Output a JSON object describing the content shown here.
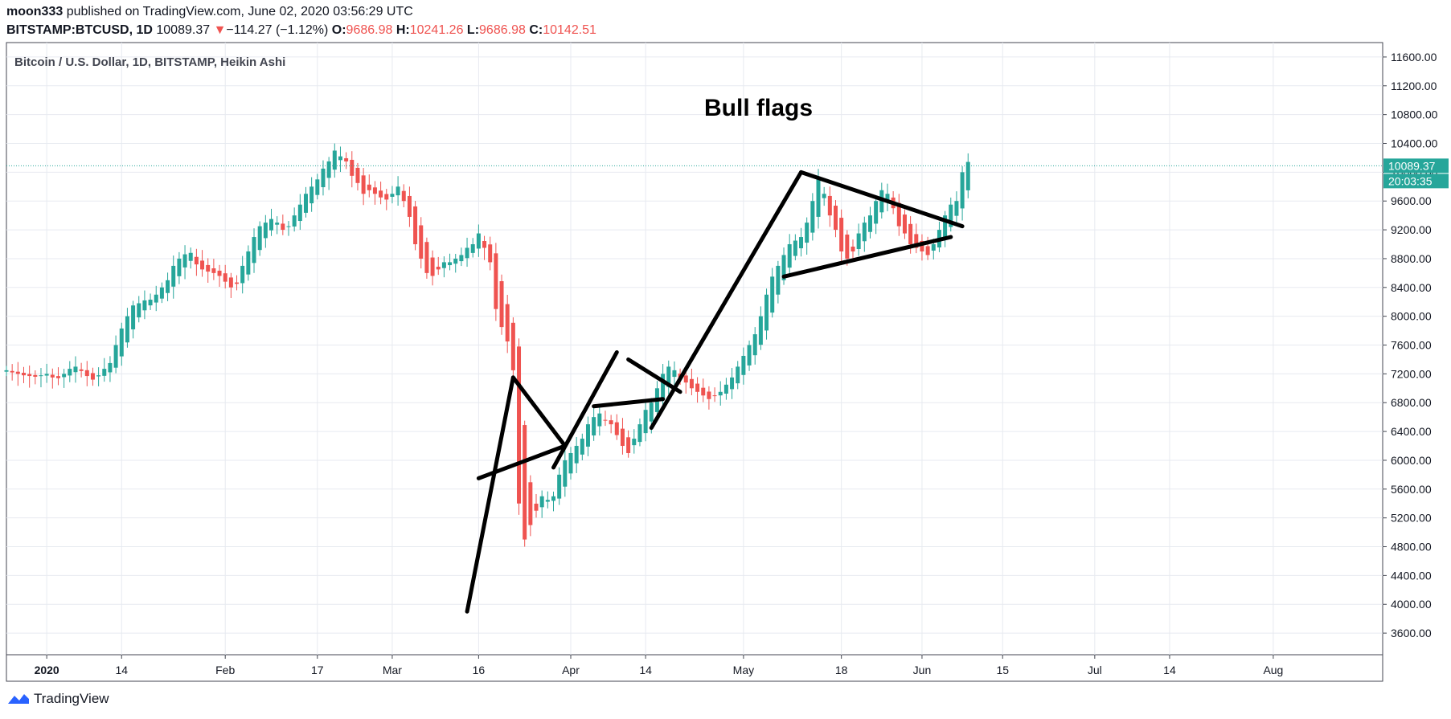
{
  "header": {
    "author": "moon333",
    "published_text": "published on TradingView.com, June 02, 2020 03:56:29 UTC",
    "symbol": "BITSTAMP:BTCUSD, 1D",
    "last": "10089.37",
    "change_arrow": "▼",
    "change": "−114.27 (−1.12%)",
    "o_label": "O:",
    "o": "9686.98",
    "h_label": "H:",
    "h": "10241.26",
    "l_label": "L:",
    "l": "9686.98",
    "c_label": "C:",
    "c": "10142.51"
  },
  "footer": {
    "brand": "TradingView",
    "logo_icon": "tradingview-logo-icon"
  },
  "colors": {
    "up": "#26a69a",
    "down": "#ef5350",
    "grid": "#e7eaf0",
    "price_line": "#26a69a",
    "annotation": "#000000"
  },
  "chart_data": {
    "type": "candlestick",
    "title": "Bitcoin / U.S. Dollar, 1D, BITSTAMP, Heikin Ashi",
    "ylim": [
      3300,
      11800
    ],
    "y_ticks": [
      3600,
      4000,
      4400,
      4800,
      5200,
      5600,
      6000,
      6400,
      6800,
      7200,
      7600,
      8000,
      8400,
      8800,
      9200,
      9600,
      10000,
      10400,
      10800,
      11200,
      11600
    ],
    "y_tick_labels": [
      "3600.00",
      "4000.00",
      "4400.00",
      "4800.00",
      "5200.00",
      "5600.00",
      "6000.00",
      "6400.00",
      "6800.00",
      "7200.00",
      "7600.00",
      "8000.00",
      "8400.00",
      "8800.00",
      "9200.00",
      "9600.00",
      "10000.00",
      "10400.00",
      "10800.00",
      "11200.00",
      "11600.00"
    ],
    "x_start": "2019-12-25",
    "x_end": "2020-08-20",
    "x_ticks": [
      {
        "date": "2020-01-01",
        "label": "2020",
        "bold": true
      },
      {
        "date": "2020-01-14",
        "label": "14"
      },
      {
        "date": "2020-02-01",
        "label": "Feb"
      },
      {
        "date": "2020-02-17",
        "label": "17"
      },
      {
        "date": "2020-03-01",
        "label": "Mar"
      },
      {
        "date": "2020-03-16",
        "label": "16"
      },
      {
        "date": "2020-04-01",
        "label": "Apr"
      },
      {
        "date": "2020-04-14",
        "label": "14"
      },
      {
        "date": "2020-05-01",
        "label": "May"
      },
      {
        "date": "2020-05-18",
        "label": "18"
      },
      {
        "date": "2020-06-01",
        "label": "Jun"
      },
      {
        "date": "2020-06-15",
        "label": "15"
      },
      {
        "date": "2020-07-01",
        "label": "Jul"
      },
      {
        "date": "2020-07-14",
        "label": "14"
      },
      {
        "date": "2020-08-01",
        "label": "Aug"
      }
    ],
    "first_candle_date": "2019-12-25",
    "closes": [
      7250,
      7220,
      7200,
      7180,
      7170,
      7160,
      7180,
      7200,
      7150,
      7140,
      7200,
      7270,
      7300,
      7240,
      7170,
      7120,
      7180,
      7270,
      7350,
      7600,
      7830,
      8000,
      8150,
      8180,
      8220,
      8230,
      8300,
      8400,
      8500,
      8700,
      8800,
      8860,
      8880,
      8720,
      8650,
      8620,
      8600,
      8560,
      8480,
      8400,
      8450,
      8700,
      8900,
      9100,
      9250,
      9300,
      9350,
      9300,
      9200,
      9250,
      9400,
      9550,
      9700,
      9800,
      9900,
      10050,
      10150,
      10300,
      10220,
      10150,
      9950,
      9850,
      9700,
      9750,
      9700,
      9650,
      9620,
      9700,
      9800,
      9600,
      9380,
      9000,
      8800,
      8600,
      8560,
      8650,
      8750,
      8750,
      8800,
      8850,
      8950,
      9000,
      9150,
      8950,
      8750,
      8100,
      7850,
      7650,
      7250,
      5400,
      4900,
      5100,
      5300,
      5500,
      5450,
      5500,
      5800,
      6000,
      6100,
      6200,
      6300,
      6500,
      6600,
      6650,
      6550,
      6500,
      6350,
      6200,
      6100,
      6300,
      6500,
      6700,
      6800,
      7000,
      7200,
      7300,
      7250,
      7150,
      7080,
      7000,
      6950,
      6900,
      6850,
      6900,
      6950,
      7050,
      7150,
      7300,
      7450,
      7600,
      7750,
      8000,
      8300,
      8550,
      8700,
      8850,
      9000,
      9050,
      9100,
      9300,
      9600,
      9900,
      9700,
      9400,
      9200,
      8900,
      8800,
      8900,
      9150,
      9300,
      9400,
      9600,
      9750,
      9700,
      9500,
      9250,
      9150,
      9000,
      8950,
      8900,
      8850,
      9000,
      9200,
      9400,
      9550,
      9600,
      10000,
      10142.51
    ],
    "last_price": 10089.37,
    "last_price_label": "10089.37",
    "countdown_label": "20:03:35",
    "annotation_text": "Bull flags",
    "drawn_lines": [
      [
        [
          "2020-03-14",
          3900
        ],
        [
          "2020-03-22",
          7150
        ]
      ],
      [
        [
          "2020-03-22",
          7150
        ],
        [
          "2020-03-31",
          6200
        ]
      ],
      [
        [
          "2020-03-16",
          5750
        ],
        [
          "2020-03-31",
          6200
        ]
      ],
      [
        [
          "2020-03-29",
          5900
        ],
        [
          "2020-04-09",
          7500
        ]
      ],
      [
        [
          "2020-04-05",
          6750
        ],
        [
          "2020-04-17",
          6850
        ]
      ],
      [
        [
          "2020-04-11",
          7400
        ],
        [
          "2020-04-20",
          6950
        ]
      ],
      [
        [
          "2020-04-15",
          6450
        ],
        [
          "2020-05-11",
          10000
        ]
      ],
      [
        [
          "2020-05-11",
          10000
        ],
        [
          "2020-06-08",
          9250
        ]
      ],
      [
        [
          "2020-05-08",
          8550
        ],
        [
          "2020-06-06",
          9100
        ]
      ]
    ]
  }
}
